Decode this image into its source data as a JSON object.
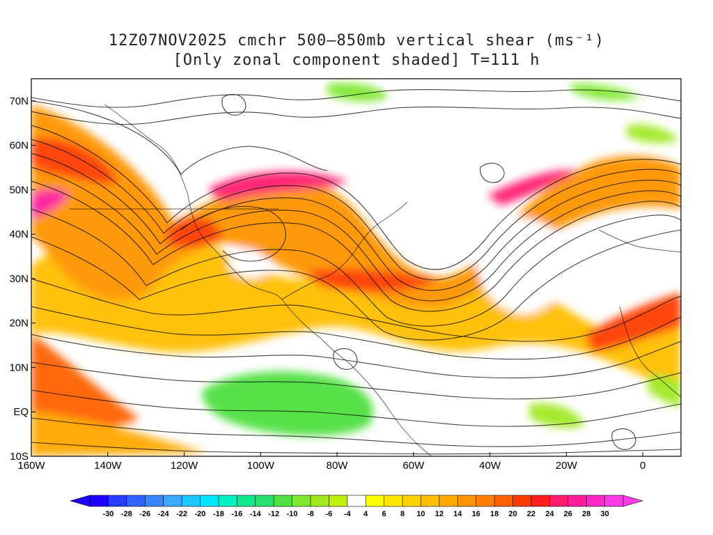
{
  "title": {
    "line1": "12Z07NOV2025 cmchr 500–850mb vertical shear (ms⁻¹)",
    "line2": "[Only zonal component shaded] T=111 h"
  },
  "map": {
    "lon_range": [
      -160,
      10
    ],
    "lat_range": [
      -10,
      75
    ],
    "lon_ticks": [
      {
        "value": -160,
        "label": "160W"
      },
      {
        "value": -140,
        "label": "140W"
      },
      {
        "value": -120,
        "label": "120W"
      },
      {
        "value": -100,
        "label": "100W"
      },
      {
        "value": -80,
        "label": "80W"
      },
      {
        "value": -60,
        "label": "60W"
      },
      {
        "value": -40,
        "label": "40W"
      },
      {
        "value": -20,
        "label": "20W"
      },
      {
        "value": 0,
        "label": "0"
      }
    ],
    "lat_ticks": [
      {
        "value": -10,
        "label": "10S"
      },
      {
        "value": 0,
        "label": "EQ"
      },
      {
        "value": 10,
        "label": "10N"
      },
      {
        "value": 20,
        "label": "20N"
      },
      {
        "value": 30,
        "label": "30N"
      },
      {
        "value": 40,
        "label": "40N"
      },
      {
        "value": 50,
        "label": "50N"
      },
      {
        "value": 60,
        "label": "60N"
      },
      {
        "value": 70,
        "label": "70N"
      }
    ]
  },
  "colorbar": {
    "levels": [
      -30,
      -28,
      -26,
      -24,
      -22,
      -20,
      -18,
      -16,
      -14,
      -12,
      -10,
      -8,
      -6,
      -4,
      4,
      6,
      8,
      10,
      12,
      14,
      16,
      18,
      20,
      22,
      24,
      26,
      28,
      30
    ],
    "labels": [
      "-30",
      "-28",
      "-26",
      "-24",
      "-22",
      "-20",
      "-18",
      "-16",
      "-14",
      "-12",
      "-10",
      "-8",
      "-6",
      "-4",
      "4",
      "6",
      "8",
      "10",
      "12",
      "14",
      "16",
      "18",
      "20",
      "22",
      "24",
      "26",
      "28",
      "30"
    ],
    "colors": [
      "#1e00ff",
      "#2a3cff",
      "#2f62ff",
      "#3a86ff",
      "#3ca8ff",
      "#1ec8ff",
      "#00e4ff",
      "#00f0c0",
      "#10e890",
      "#28e070",
      "#50e040",
      "#80e830",
      "#a0e820",
      "#c0f010",
      "#ffffff",
      "#ffff00",
      "#ffe800",
      "#ffd200",
      "#ffbe00",
      "#ffa800",
      "#ff9400",
      "#ff7e00",
      "#ff6000",
      "#ff3c00",
      "#ff1e1e",
      "#ff1e6e",
      "#ff1e9c",
      "#ff28c8",
      "#ff3ce6"
    ]
  }
}
